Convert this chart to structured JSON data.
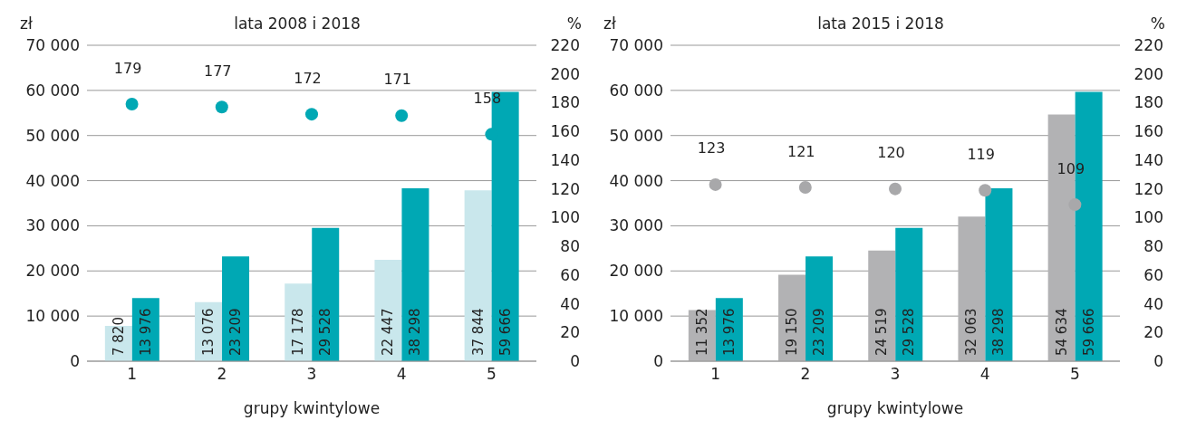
{
  "chart_data": [
    {
      "type": "bar",
      "title": "lata 2008 i 2018",
      "xlabel": "grupy kwintylowe",
      "ylabel": "zł",
      "y2label": "%",
      "categories": [
        "1",
        "2",
        "3",
        "4",
        "5"
      ],
      "ylim": [
        0,
        70000
      ],
      "yticks": [
        {
          "value": 0,
          "label": "0"
        },
        {
          "value": 10000,
          "label": "10 000"
        },
        {
          "value": 20000,
          "label": "20 000"
        },
        {
          "value": 30000,
          "label": "30 000"
        },
        {
          "value": 40000,
          "label": "40 000"
        },
        {
          "value": 50000,
          "label": "50 000"
        },
        {
          "value": 60000,
          "label": "60 000"
        },
        {
          "value": 70000,
          "label": "70 000"
        }
      ],
      "y2lim": [
        0,
        220
      ],
      "y2ticks": [
        0,
        20,
        40,
        60,
        80,
        100,
        120,
        140,
        160,
        180,
        200,
        220
      ],
      "grid": "y",
      "series": [
        {
          "color": "#c9e7ec",
          "values": [
            7820,
            13076,
            17178,
            22447,
            37844
          ],
          "value_labels": [
            "7 820",
            "13 076",
            "17 178",
            "22 447",
            "37 844"
          ]
        },
        {
          "color": "#00a8b4",
          "values": [
            13976,
            23209,
            29528,
            38298,
            59666
          ],
          "value_labels": [
            "13 976",
            "23 209",
            "29 528",
            "38 298",
            "59 666"
          ]
        },
        {
          "type": "scatter",
          "axis": "y2",
          "marker": "circle",
          "color": "#00a8b4",
          "x": [
            "1",
            "2",
            "3",
            "4",
            "5"
          ],
          "values": [
            179,
            177,
            172,
            171,
            158
          ],
          "value_labels": [
            "179",
            "177",
            "172",
            "171",
            "158"
          ]
        }
      ]
    },
    {
      "type": "bar",
      "title": "lata 2015 i 2018",
      "xlabel": "grupy kwintylowe",
      "ylabel": "zł",
      "y2label": "%",
      "categories": [
        "1",
        "2",
        "3",
        "4",
        "5"
      ],
      "ylim": [
        0,
        70000
      ],
      "yticks": [
        {
          "value": 0,
          "label": "0"
        },
        {
          "value": 10000,
          "label": "10 000"
        },
        {
          "value": 20000,
          "label": "20 000"
        },
        {
          "value": 30000,
          "label": "30 000"
        },
        {
          "value": 40000,
          "label": "40 000"
        },
        {
          "value": 50000,
          "label": "50 000"
        },
        {
          "value": 60000,
          "label": "60 000"
        },
        {
          "value": 70000,
          "label": "70 000"
        }
      ],
      "y2lim": [
        0,
        220
      ],
      "y2ticks": [
        0,
        20,
        40,
        60,
        80,
        100,
        120,
        140,
        160,
        180,
        200,
        220
      ],
      "grid": "y",
      "series": [
        {
          "color": "#b2b2b4",
          "values": [
            11352,
            19150,
            24519,
            32063,
            54634
          ],
          "value_labels": [
            "11 352",
            "19 150",
            "24 519",
            "32 063",
            "54 634"
          ]
        },
        {
          "color": "#00a8b4",
          "values": [
            13976,
            23209,
            29528,
            38298,
            59666
          ],
          "value_labels": [
            "13 976",
            "23 209",
            "29 528",
            "38 298",
            "59 666"
          ]
        },
        {
          "type": "scatter",
          "axis": "y2",
          "marker": "circle",
          "color": "#a8a8aa",
          "x": [
            "1",
            "2",
            "3",
            "4",
            "5"
          ],
          "values": [
            123,
            121,
            120,
            119,
            109
          ],
          "value_labels": [
            "123",
            "121",
            "120",
            "119",
            "109"
          ]
        }
      ]
    }
  ]
}
